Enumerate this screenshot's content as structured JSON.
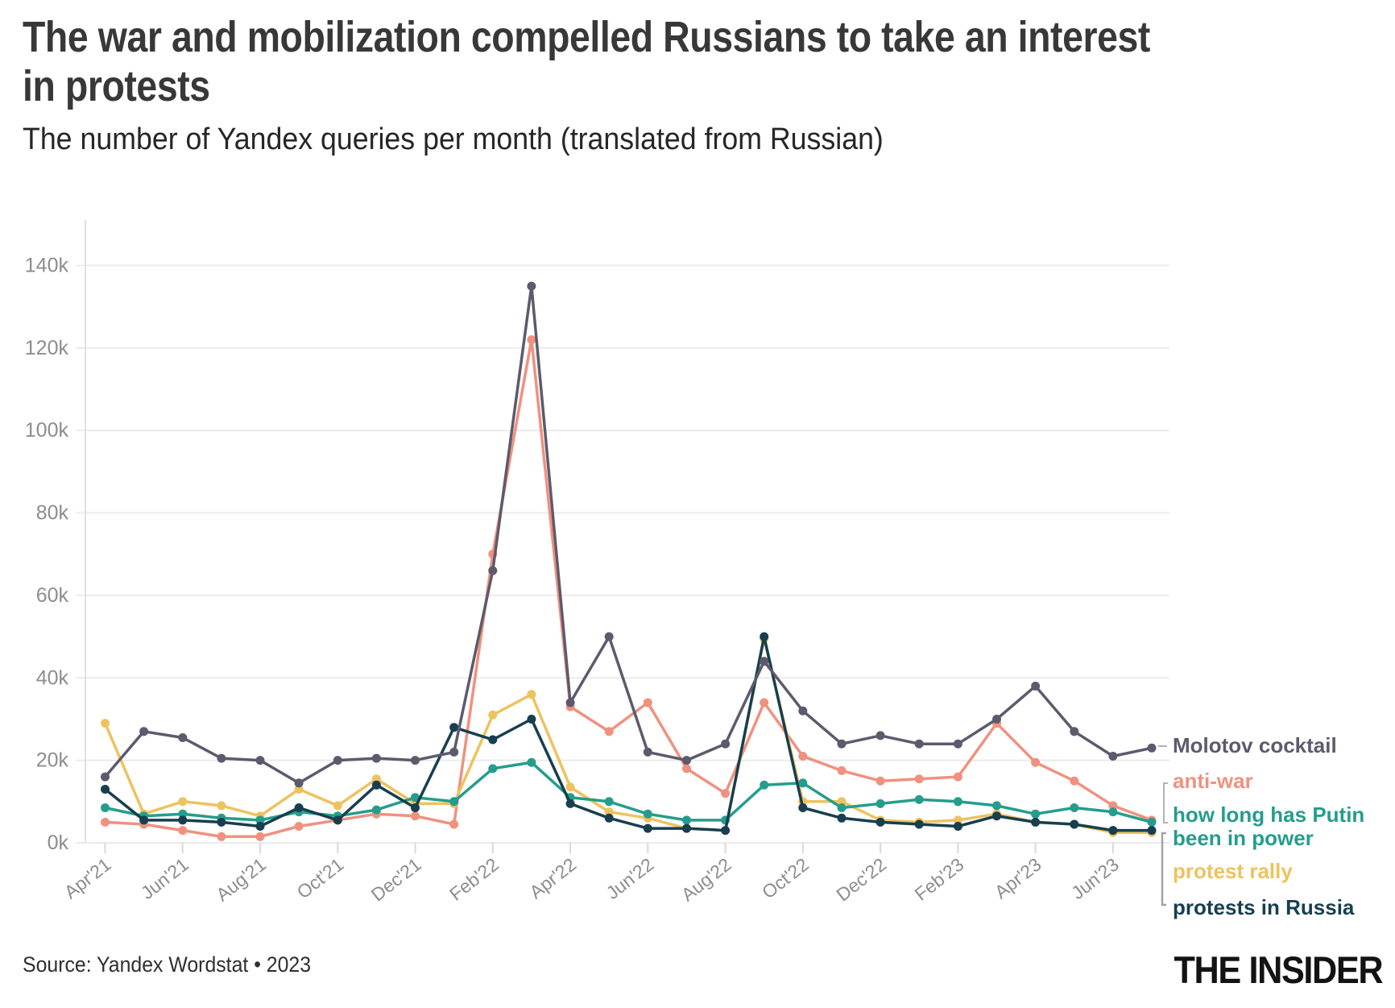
{
  "header": {
    "title": "The war and mobilization compelled Russians to take an interest in protests",
    "subtitle": "The number of Yandex queries per month (translated from Russian)"
  },
  "footer": {
    "source": "Source: Yandex Wordstat • 2023",
    "logo": "THE INSIDER"
  },
  "chart_data": {
    "type": "line",
    "title": "The war and mobilization compelled Russians to take an interest in protests",
    "subtitle": "The number of Yandex queries per month (translated from Russian)",
    "xlabel": "",
    "ylabel": "queries per month",
    "values_unit": "thousands",
    "grid": true,
    "legend_position": "right",
    "ylim": [
      0,
      140
    ],
    "y_ticks": [
      0,
      20,
      40,
      60,
      80,
      100,
      120,
      140
    ],
    "y_tick_labels": [
      "0k",
      "20k",
      "40k",
      "60k",
      "80k",
      "100k",
      "120k",
      "140k"
    ],
    "x": [
      "Apr'21",
      "May'21",
      "Jun'21",
      "Jul'21",
      "Aug'21",
      "Sep'21",
      "Oct'21",
      "Nov'21",
      "Dec'21",
      "Jan'22",
      "Feb'22",
      "Mar'22",
      "Apr'22",
      "May'22",
      "Jun'22",
      "Jul'22",
      "Aug'22",
      "Sep'22",
      "Oct'22",
      "Nov'22",
      "Dec'22",
      "Jan'23",
      "Feb'23",
      "Mar'23",
      "Apr'23",
      "May'23",
      "Jun'23",
      "Jul'23"
    ],
    "x_tick_labels": [
      "Apr'21",
      "Jun'21",
      "Aug'21",
      "Oct'21",
      "Dec'21",
      "Feb'22",
      "Apr'22",
      "Jun'22",
      "Aug'22",
      "Oct'22",
      "Dec'22",
      "Feb'23",
      "Apr'23",
      "Jun'23"
    ],
    "series": [
      {
        "name": "Molotov cocktail",
        "color": "#5e5a6d",
        "values": [
          16,
          27,
          25.5,
          20.5,
          20,
          14.5,
          20,
          20.5,
          20,
          22,
          66,
          135,
          34,
          50,
          22,
          20,
          24,
          44,
          32,
          24,
          26,
          24,
          24,
          30,
          38,
          27,
          21,
          23
        ]
      },
      {
        "name": "anti-war",
        "color": "#f0917f",
        "values": [
          5,
          4.5,
          3,
          1.5,
          1.5,
          4,
          5.5,
          7,
          6.5,
          4.5,
          70,
          122,
          33,
          27,
          34,
          18,
          12,
          34,
          21,
          17.5,
          15,
          15.5,
          16,
          29,
          19.5,
          15,
          9,
          5.5
        ]
      },
      {
        "name": "how long has Putin been in power",
        "color": "#259d8c",
        "values": [
          8.5,
          6.5,
          7,
          6,
          5.5,
          7.5,
          6.5,
          8,
          11,
          10,
          18,
          19.5,
          11,
          10,
          7,
          5.5,
          5.5,
          14,
          14.5,
          8.5,
          9.5,
          10.5,
          10,
          9,
          7,
          8.5,
          7.5,
          5
        ]
      },
      {
        "name": "protest rally",
        "color": "#edc35f",
        "values": [
          29,
          7,
          10,
          9,
          6.5,
          13,
          9,
          15.5,
          9.5,
          9.5,
          31,
          36,
          13.5,
          7.5,
          6,
          3.5,
          3,
          49.5,
          10,
          10,
          5.5,
          5,
          5.5,
          7,
          5,
          4.5,
          2.5,
          2.5
        ]
      },
      {
        "name": "protests in Russia",
        "color": "#173f4f",
        "values": [
          13,
          5.5,
          5.5,
          5,
          4,
          8.5,
          5.5,
          14,
          8.5,
          28,
          25,
          30,
          9.5,
          6,
          3.5,
          3.5,
          3,
          50,
          8.5,
          6,
          5,
          4.5,
          4,
          6.5,
          5,
          4.5,
          3,
          3
        ]
      }
    ]
  }
}
